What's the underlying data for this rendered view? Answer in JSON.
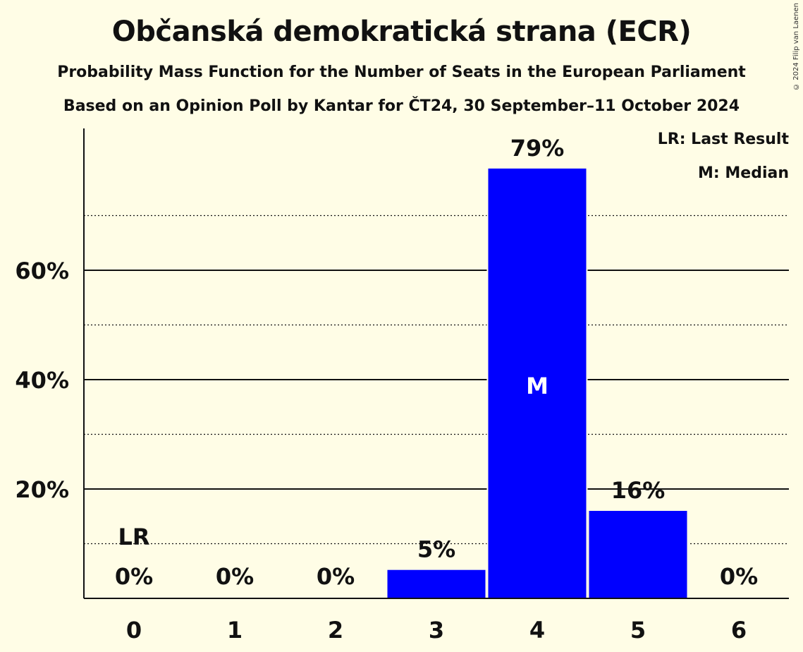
{
  "chart_data": {
    "type": "bar",
    "title": "Občanská demokratická strana (ECR)",
    "subtitle": "Probability Mass Function for the Number of Seats in the European Parliament",
    "subtitle2": "Based on an Opinion Poll by Kantar for ČT24, 30 September–11 October 2024",
    "categories": [
      "0",
      "1",
      "2",
      "3",
      "4",
      "5",
      "6"
    ],
    "values": [
      0,
      0,
      0,
      5,
      79,
      16,
      0
    ],
    "value_labels": [
      "0%",
      "0%",
      "0%",
      "5%",
      "79%",
      "16%",
      "0%"
    ],
    "bar_values_precise": [
      0,
      0,
      0,
      5.2,
      78.6,
      16.0,
      0
    ],
    "ylim": [
      0,
      85
    ],
    "yticks": [
      20,
      40,
      60
    ],
    "ytick_labels": [
      "20%",
      "40%",
      "60%"
    ],
    "minor_gridlines": [
      10,
      30,
      50,
      70
    ],
    "last_result_index": 0,
    "last_result_label": "LR",
    "median_index": 4,
    "median_label": "M",
    "bar_color": "#0000ff",
    "legend": [
      "LR: Last Result",
      "M: Median"
    ]
  },
  "copyright": "© 2024 Filip van Laenen"
}
